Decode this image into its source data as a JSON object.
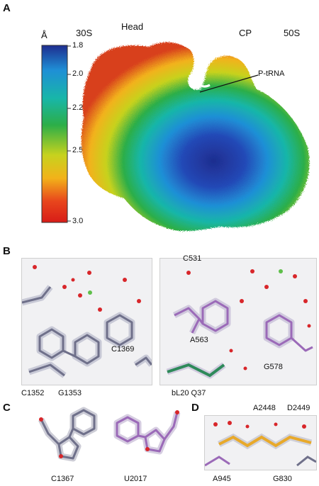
{
  "panels": {
    "a": {
      "letter": "A",
      "labels": {
        "left": "30S",
        "head": "Head",
        "cp": "CP",
        "right": "50S",
        "ptrna": "P-tRNA"
      },
      "colorbar": {
        "unit": "Å",
        "ticks": [
          "1.8",
          "2.0",
          "2.2",
          "2.5",
          "3.0"
        ],
        "stops": [
          "#1e2d8f",
          "#1f8fd6",
          "#18b6a8",
          "#2cae48",
          "#c7d21e",
          "#f2b21a",
          "#e8461c",
          "#d81c18"
        ]
      }
    },
    "b": {
      "letter": "B",
      "left_labels": {
        "c1369": "C1369",
        "c1352": "C1352",
        "g1353": "G1353"
      },
      "right_labels": {
        "c531": "C531",
        "a563": "A563",
        "g578": "G578",
        "bl20": "bL20 Q37"
      }
    },
    "c": {
      "letter": "C",
      "labels": {
        "c1367": "C1367",
        "u2017": "U2017"
      }
    },
    "d": {
      "letter": "D",
      "labels": {
        "a2448": "A2448",
        "d2449": "D2449",
        "a945": "A945",
        "g830": "G830"
      }
    }
  }
}
